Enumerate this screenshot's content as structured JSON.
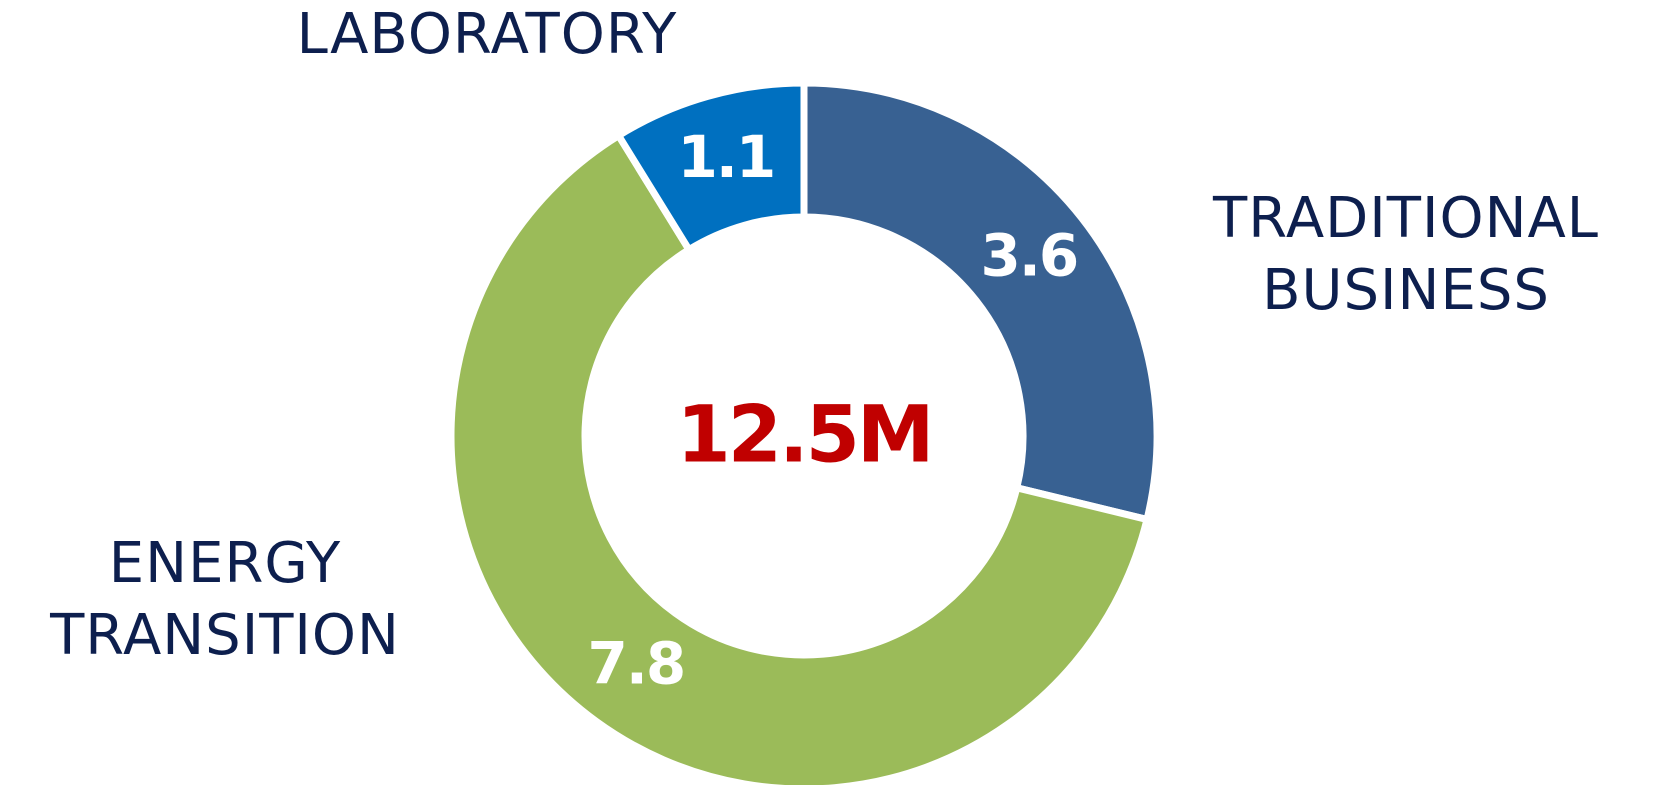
{
  "chart_data": {
    "type": "donut",
    "categories": [
      "TRADITIONAL BUSINESS",
      "ENERGY TRANSITION",
      "LABORATORY"
    ],
    "values": [
      3.6,
      7.8,
      1.1
    ],
    "colors": [
      "#386192",
      "#9bbb59",
      "#0070c0"
    ],
    "center_label": "12.5M"
  }
}
